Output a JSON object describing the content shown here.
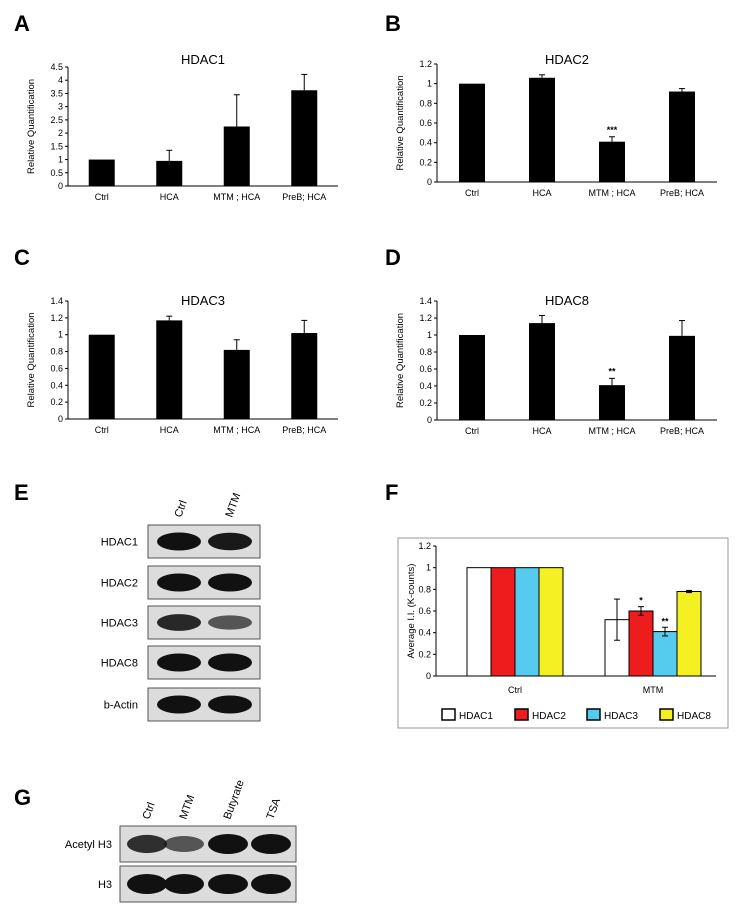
{
  "panels": {
    "A": "A",
    "B": "B",
    "C": "C",
    "D": "D",
    "E": "E",
    "F": "F",
    "G": "G"
  },
  "chart_data": [
    {
      "panel": "A",
      "type": "bar",
      "title": "HDAC1",
      "ylabel": "Relative Quantification",
      "ylim": [
        0,
        4.5
      ],
      "yticks": [
        "0",
        "0.5",
        "1",
        "1.5",
        "2",
        "2.5",
        "3",
        "3.5",
        "4",
        "4.5"
      ],
      "categories": [
        "Ctrl",
        "HCA",
        "MTM ; HCA",
        "PreB; HCA"
      ],
      "values": [
        1.0,
        0.95,
        2.25,
        3.62
      ],
      "errors": [
        0,
        0.4,
        1.2,
        0.6
      ],
      "significance": [
        "",
        "",
        "",
        ""
      ],
      "bar_color": "#000000"
    },
    {
      "panel": "B",
      "type": "bar",
      "title": "HDAC2",
      "ylabel": "Relative Quantification",
      "ylim": [
        0,
        1.2
      ],
      "yticks": [
        "0",
        "0.2",
        "0.4",
        "0.6",
        "0.8",
        "1",
        "1.2"
      ],
      "categories": [
        "Ctrl",
        "HCA",
        "MTM ; HCA",
        "PreB; HCA"
      ],
      "values": [
        1.0,
        1.06,
        0.41,
        0.92
      ],
      "errors": [
        0,
        0.03,
        0.05,
        0.03
      ],
      "significance": [
        "",
        "",
        "***",
        ""
      ],
      "bar_color": "#000000"
    },
    {
      "panel": "C",
      "type": "bar",
      "title": "HDAC3",
      "ylabel": "Relative Quantification",
      "ylim": [
        0,
        1.4
      ],
      "yticks": [
        "0",
        "0.2",
        "0.4",
        "0.6",
        "0.8",
        "1",
        "1.2",
        "1.4"
      ],
      "categories": [
        "Ctrl",
        "HCA",
        "MTM ; HCA",
        "PreB; HCA"
      ],
      "values": [
        1.0,
        1.17,
        0.82,
        1.02
      ],
      "errors": [
        0,
        0.05,
        0.12,
        0.15
      ],
      "significance": [
        "",
        "",
        "",
        ""
      ],
      "bar_color": "#000000"
    },
    {
      "panel": "D",
      "type": "bar",
      "title": "HDAC8",
      "ylabel": "Relative Quantification",
      "ylim": [
        0,
        1.4
      ],
      "yticks": [
        "0",
        "0.2",
        "0.4",
        "0.6",
        "0.8",
        "1",
        "1.2",
        "1.4"
      ],
      "categories": [
        "Ctrl",
        "HCA",
        "MTM ; HCA",
        "PreB; HCA"
      ],
      "values": [
        1.0,
        1.14,
        0.41,
        0.99
      ],
      "errors": [
        0,
        0.09,
        0.08,
        0.18
      ],
      "significance": [
        "",
        "",
        "**",
        ""
      ],
      "bar_color": "#000000"
    },
    {
      "panel": "F",
      "type": "bar",
      "title": "",
      "ylabel": "Average I.I. (K-counts)",
      "ylim": [
        0,
        1.2
      ],
      "yticks": [
        "0",
        "0.2",
        "0.4",
        "0.6",
        "0.8",
        "1",
        "1.2"
      ],
      "categories": [
        "Ctrl",
        "MTM"
      ],
      "series": [
        {
          "name": "HDAC1",
          "color": "#ffffff",
          "values": [
            1.0,
            0.52
          ],
          "errors": [
            0,
            0.19
          ],
          "significance": [
            "",
            ""
          ]
        },
        {
          "name": "HDAC2",
          "color": "#ee1c1c",
          "values": [
            1.0,
            0.6
          ],
          "errors": [
            0,
            0.04
          ],
          "significance": [
            "",
            "*"
          ]
        },
        {
          "name": "HDAC3",
          "color": "#55ccee",
          "values": [
            1.0,
            0.41
          ],
          "errors": [
            0,
            0.04
          ],
          "significance": [
            "",
            "**"
          ]
        },
        {
          "name": "HDAC8",
          "color": "#f4f022",
          "values": [
            1.0,
            0.78
          ],
          "errors": [
            0,
            0.01
          ],
          "significance": [
            "",
            ""
          ]
        }
      ]
    }
  ],
  "blot_E": {
    "columns": [
      "Ctrl",
      "MTM"
    ],
    "rows": [
      {
        "label": "HDAC1",
        "intensity": [
          1.0,
          0.95
        ]
      },
      {
        "label": "HDAC2",
        "intensity": [
          1.0,
          1.0
        ]
      },
      {
        "label": "HDAC3",
        "intensity": [
          0.85,
          0.55
        ]
      },
      {
        "label": "HDAC8",
        "intensity": [
          1.0,
          1.0
        ]
      },
      {
        "label": "b-Actin",
        "intensity": [
          1.0,
          1.0
        ]
      }
    ]
  },
  "blot_G": {
    "columns": [
      "Ctrl",
      "MTM",
      "Butyrate",
      "TSA"
    ],
    "rows": [
      {
        "label": "Acetyl H3",
        "intensity": [
          0.8,
          0.55,
          1.0,
          1.0
        ]
      },
      {
        "label": "H3",
        "intensity": [
          1.0,
          1.0,
          1.0,
          1.0
        ]
      }
    ]
  }
}
